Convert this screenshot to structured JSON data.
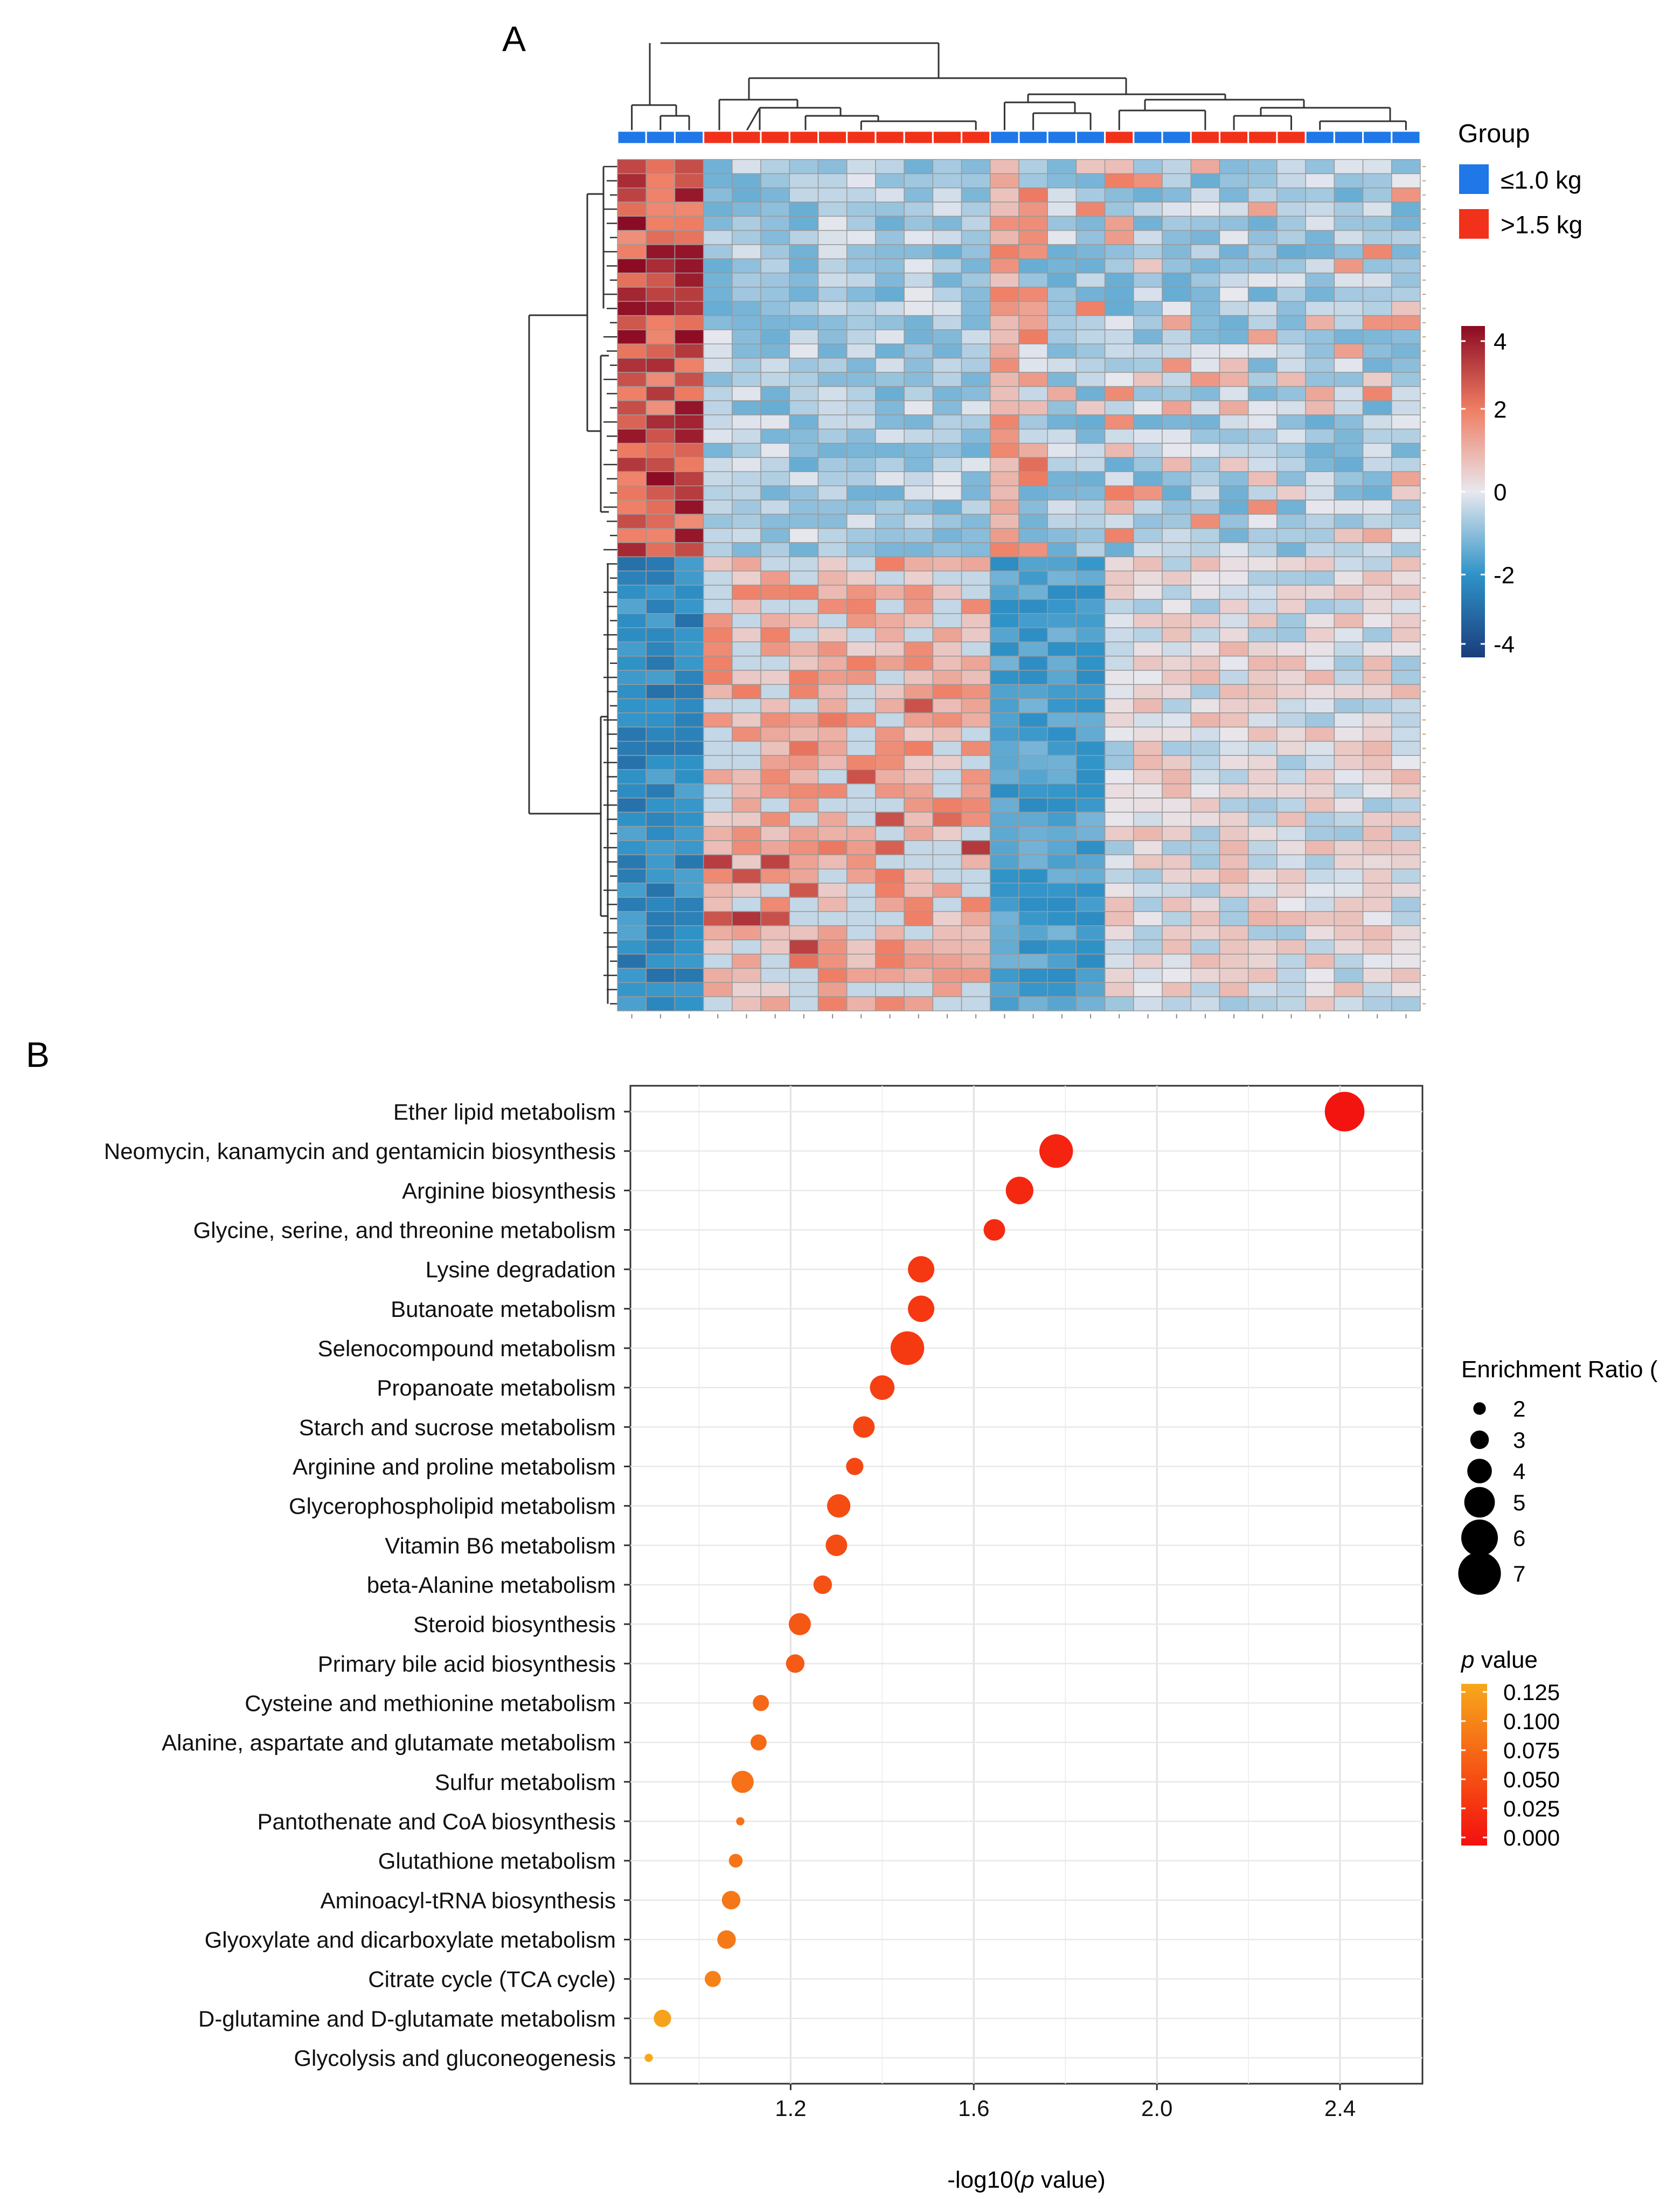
{
  "panel_a": {
    "label": "A",
    "legend_group_title": "Group",
    "groups": [
      {
        "name": "≤1.0 kg",
        "color": "#1f77e8"
      },
      {
        "name": ">1.5 kg",
        "color": "#f2311a"
      }
    ],
    "column_groups": [
      "lo",
      "lo",
      "lo",
      "hi",
      "hi",
      "hi",
      "hi",
      "hi",
      "hi",
      "hi",
      "hi",
      "hi",
      "hi",
      "lo",
      "lo",
      "lo",
      "lo",
      "hi",
      "lo",
      "lo",
      "hi",
      "hi",
      "hi",
      "hi",
      "lo",
      "lo",
      "lo",
      "lo"
    ],
    "colorbar_ticks": [
      "4",
      "2",
      "0",
      "-2",
      "-4"
    ],
    "colorbar_range": [
      -4,
      4
    ],
    "colors": {
      "low": "#1a3d7c",
      "mid_low": "#2f93c8",
      "neutral": "#e8e8ee",
      "mid_high": "#ef7d63",
      "high": "#8b0a23"
    }
  },
  "chart_data": {
    "type": "scatter",
    "panel_label": "B",
    "xlabel": "-log10(p value)",
    "xlabel_prefix": "-log10(",
    "xlabel_italic": "p",
    "xlabel_suffix": " value)",
    "xlim": [
      0.85,
      2.58
    ],
    "xticks": [
      "1.2",
      "1.6",
      "2.0",
      "2.4"
    ],
    "xtick_values": [
      1.2,
      1.6,
      2.0,
      2.4
    ],
    "pathways": [
      {
        "name": "Ether lipid metabolism",
        "x": 2.41,
        "ratio": 6.5,
        "p": 0.004
      },
      {
        "name": "Neomycin, kanamycin and gentamicin biosynthesis",
        "x": 1.78,
        "ratio": 5.5,
        "p": 0.017
      },
      {
        "name": "Arginine biosynthesis",
        "x": 1.7,
        "ratio": 4.5,
        "p": 0.02
      },
      {
        "name": "Glycine, serine, and threonine metabolism",
        "x": 1.645,
        "ratio": 3.5,
        "p": 0.023
      },
      {
        "name": "Lysine degradation",
        "x": 1.485,
        "ratio": 4.3,
        "p": 0.033
      },
      {
        "name": "Butanoate metabolism",
        "x": 1.485,
        "ratio": 4.3,
        "p": 0.033
      },
      {
        "name": "Selenocompound metabolism",
        "x": 1.455,
        "ratio": 5.5,
        "p": 0.035
      },
      {
        "name": "Propanoate metabolism",
        "x": 1.4,
        "ratio": 4.0,
        "p": 0.04
      },
      {
        "name": "Starch and sucrose metabolism",
        "x": 1.36,
        "ratio": 3.5,
        "p": 0.044
      },
      {
        "name": "Arginine and proline metabolism",
        "x": 1.34,
        "ratio": 2.8,
        "p": 0.046
      },
      {
        "name": "Glycerophospholipid metabolism",
        "x": 1.305,
        "ratio": 3.8,
        "p": 0.05
      },
      {
        "name": "Vitamin B6 metabolism",
        "x": 1.3,
        "ratio": 3.5,
        "p": 0.05
      },
      {
        "name": "beta-Alanine metabolism",
        "x": 1.27,
        "ratio": 3.0,
        "p": 0.054
      },
      {
        "name": "Steroid biosynthesis",
        "x": 1.22,
        "ratio": 3.6,
        "p": 0.06
      },
      {
        "name": "Primary bile acid biosynthesis",
        "x": 1.21,
        "ratio": 3.0,
        "p": 0.062
      },
      {
        "name": "Cysteine and methionine metabolism",
        "x": 1.135,
        "ratio": 2.6,
        "p": 0.073
      },
      {
        "name": "Alanine, aspartate and glutamate metabolism",
        "x": 1.13,
        "ratio": 2.6,
        "p": 0.074
      },
      {
        "name": "Sulfur metabolism",
        "x": 1.095,
        "ratio": 3.6,
        "p": 0.08
      },
      {
        "name": "Pantothenate and CoA biosynthesis",
        "x": 1.09,
        "ratio": 1.3,
        "p": 0.081
      },
      {
        "name": "Glutathione metabolism",
        "x": 1.08,
        "ratio": 2.2,
        "p": 0.083
      },
      {
        "name": "Aminoacyl-tRNA biosynthesis",
        "x": 1.07,
        "ratio": 3.0,
        "p": 0.085
      },
      {
        "name": "Glyoxylate and dicarboxylate metabolism",
        "x": 1.06,
        "ratio": 3.0,
        "p": 0.087
      },
      {
        "name": "Citrate cycle (TCA cycle)",
        "x": 1.03,
        "ratio": 2.6,
        "p": 0.093
      },
      {
        "name": "D-glutamine and D-glutamate metabolism",
        "x": 0.92,
        "ratio": 2.8,
        "p": 0.12
      },
      {
        "name": "Glycolysis and gluconeogenesis",
        "x": 0.89,
        "ratio": 1.3,
        "p": 0.129
      }
    ],
    "size_legend": {
      "title": "Enrichment Ratio (",
      "items": [
        {
          "label": "2",
          "value": 2
        },
        {
          "label": "3",
          "value": 3
        },
        {
          "label": "4",
          "value": 4
        },
        {
          "label": "5",
          "value": 5
        },
        {
          "label": "6",
          "value": 6
        },
        {
          "label": "7",
          "value": 7
        }
      ]
    },
    "color_legend": {
      "title_italic": "p",
      "title_rest": " value",
      "ticks": [
        "0.125",
        "0.100",
        "0.075",
        "0.050",
        "0.025",
        "0.000"
      ],
      "colors": {
        "high_p": "#f7a81b",
        "low_p": "#f40f0f"
      }
    }
  }
}
